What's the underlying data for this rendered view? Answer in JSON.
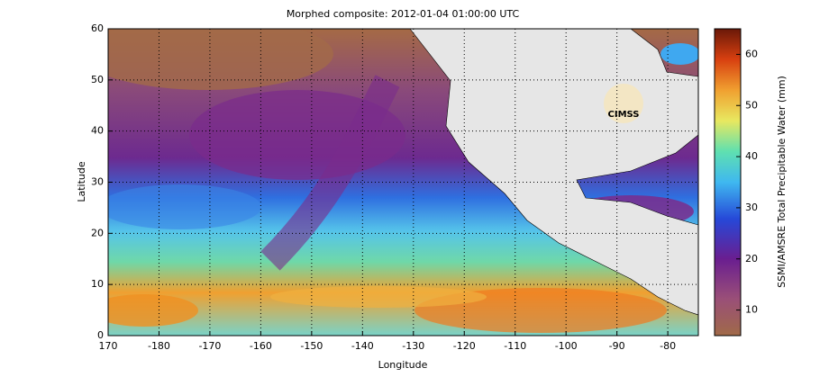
{
  "chart_data": {
    "type": "map",
    "title": "Morphed composite: 2012-01-04 01:00:00 UTC",
    "xlabel": "Longitude",
    "ylabel": "Latitude",
    "xlim": [
      170,
      -74
    ],
    "xticks": [
      170,
      -180,
      -170,
      -160,
      -150,
      -140,
      -130,
      -120,
      -110,
      -100,
      -90,
      -80
    ],
    "ylim": [
      0,
      60
    ],
    "yticks": [
      0,
      10,
      20,
      30,
      40,
      50,
      60
    ],
    "grid": true,
    "colorbar": {
      "label": "SSMI/AMSRE Total Precipitable Water (mm)",
      "ylim": [
        5,
        65
      ],
      "yticks": [
        10,
        20,
        30,
        40,
        50,
        60
      ]
    },
    "logo": "CIMSS"
  }
}
